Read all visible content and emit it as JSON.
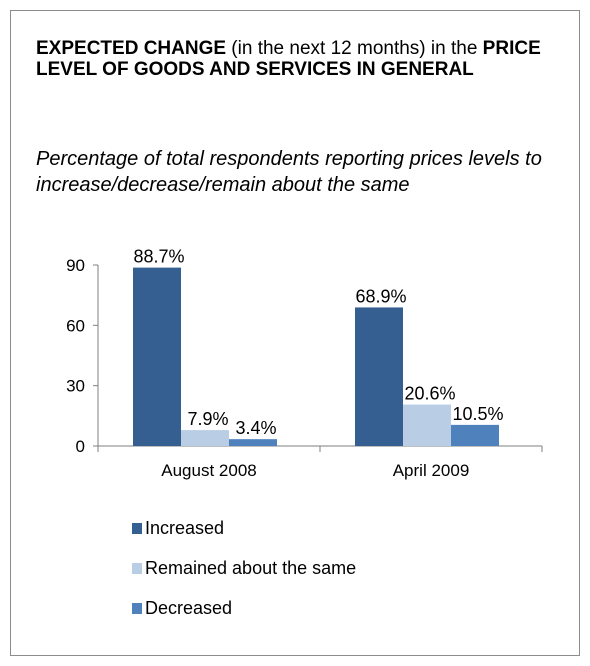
{
  "title": {
    "part1_bold": "EXPECTED CHANGE",
    "part2": " (in the next 12 months) in the ",
    "part3_bold": "PRICE LEVEL OF GOODS AND SERVICES IN GENERAL"
  },
  "subtitle": "Percentage of total respondents reporting prices levels to increase/decrease/remain about the same",
  "colors": {
    "increased": "#365f91",
    "remained": "#b9cde5",
    "decreased": "#4f81bd",
    "axis": "#7f7f7f"
  },
  "chart_data": {
    "type": "bar",
    "categories": [
      "August 2008",
      "April 2009"
    ],
    "series": [
      {
        "name": "Increased",
        "values": [
          88.7,
          68.9
        ],
        "labels": [
          "88.7%",
          "68.9%"
        ]
      },
      {
        "name": "Remained about the same",
        "values": [
          7.9,
          20.6
        ],
        "labels": [
          "7.9%",
          "20.6%"
        ]
      },
      {
        "name": "Decreased",
        "values": [
          3.4,
          10.5
        ],
        "labels": [
          "3.4%",
          "10.5%"
        ]
      }
    ],
    "ylim": [
      0,
      90
    ],
    "yticks": [
      0,
      30,
      60,
      90
    ],
    "grid": false,
    "legend_position": "bottom"
  }
}
